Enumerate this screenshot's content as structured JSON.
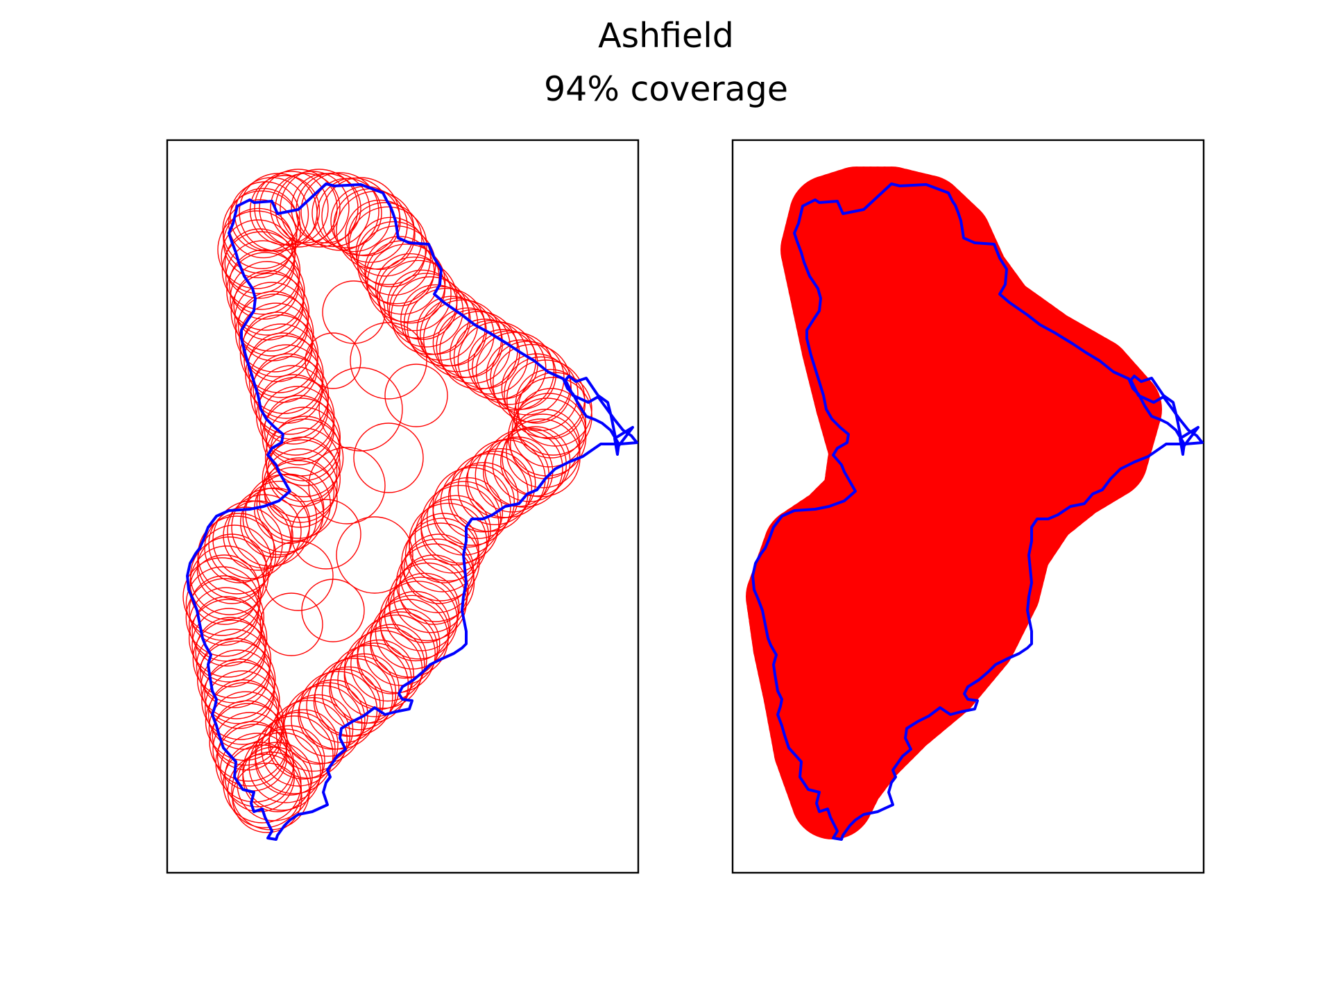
{
  "figure": {
    "title": "Ashfield",
    "subtitle": "94% coverage"
  },
  "panels": [
    {
      "name": "circles-outline-view",
      "boundary_color": "#0000ff",
      "circle_color": "#ff0000",
      "circle_style": "outline"
    },
    {
      "name": "circles-filled-view",
      "boundary_color": "#0000ff",
      "circle_color": "#ff0000",
      "circle_style": "filled"
    }
  ]
}
